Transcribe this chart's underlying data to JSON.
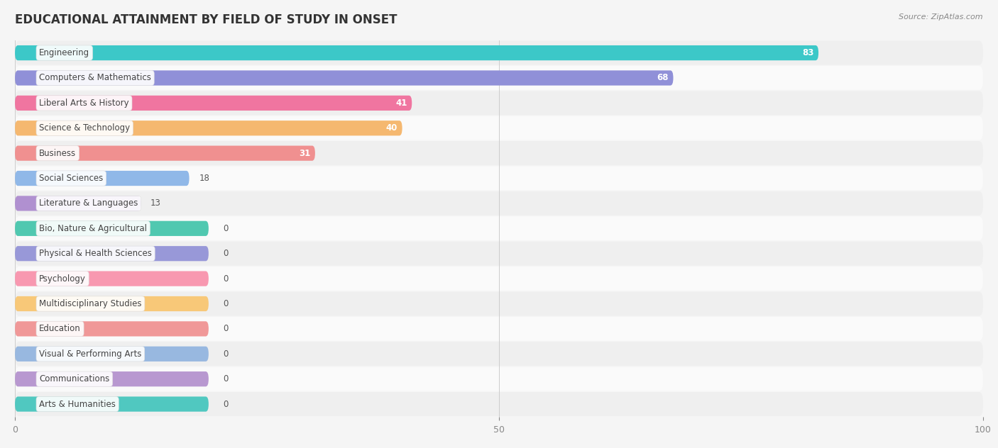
{
  "title": "EDUCATIONAL ATTAINMENT BY FIELD OF STUDY IN ONSET",
  "source": "Source: ZipAtlas.com",
  "categories": [
    "Engineering",
    "Computers & Mathematics",
    "Liberal Arts & History",
    "Science & Technology",
    "Business",
    "Social Sciences",
    "Literature & Languages",
    "Bio, Nature & Agricultural",
    "Physical & Health Sciences",
    "Psychology",
    "Multidisciplinary Studies",
    "Education",
    "Visual & Performing Arts",
    "Communications",
    "Arts & Humanities"
  ],
  "values": [
    83,
    68,
    41,
    40,
    31,
    18,
    13,
    0,
    0,
    0,
    0,
    0,
    0,
    0,
    0
  ],
  "bar_colors": [
    "#3cc8c8",
    "#9090d8",
    "#f075a0",
    "#f5b870",
    "#f09090",
    "#90b8e8",
    "#b090d0",
    "#50c8b0",
    "#9898d8",
    "#f898b0",
    "#f8c878",
    "#f09898",
    "#98b8e0",
    "#b898d0",
    "#50c8c0"
  ],
  "xlim": [
    0,
    100
  ],
  "background_color": "#f5f5f5",
  "row_bg_even": "#efefef",
  "row_bg_odd": "#fafafa",
  "title_fontsize": 12,
  "bar_height": 0.6,
  "figsize": [
    14.06,
    6.32
  ]
}
